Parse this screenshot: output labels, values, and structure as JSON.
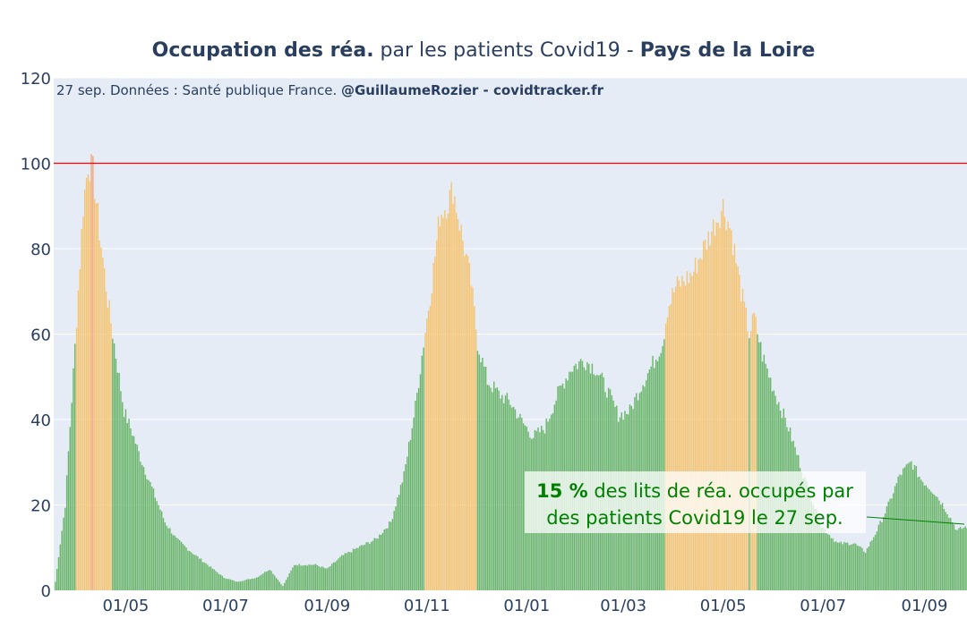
{
  "title": {
    "part1": "Occupation des réa.",
    "part2": " par les patients Covid19 - ",
    "part3": "Pays de la Loire"
  },
  "source": {
    "prefix": "27 sep. Données : Santé publique France. ",
    "credit": "@GuillaumeRozier - covidtracker.fr"
  },
  "annotation": {
    "value": "15  %",
    "line1_rest": " des lits de réa. occupés par",
    "line2": "des patients Covid19 le 27 sep."
  },
  "colors": {
    "plot_bg": "#e5ecf6",
    "grid": "#ffffff",
    "green": "#6ab56a",
    "orange": "#f6c471",
    "red_peak": "#f3a77a",
    "threshold": "#ff0000",
    "annotation": "#008000"
  },
  "chart_data": {
    "type": "bar",
    "title": "Occupation des réa. par les patients Covid19 - Pays de la Loire",
    "ylim": [
      0,
      120
    ],
    "yticks": [
      0,
      20,
      40,
      60,
      80,
      100,
      120
    ],
    "xlim": [
      "2020-03-18",
      "2021-09-27"
    ],
    "xticks": [
      {
        "date": "2020-05-01",
        "label": "01/05"
      },
      {
        "date": "2020-07-01",
        "label": "01/07"
      },
      {
        "date": "2020-09-01",
        "label": "01/09"
      },
      {
        "date": "2020-11-01",
        "label": "01/11"
      },
      {
        "date": "2021-01-01",
        "label": "01/01"
      },
      {
        "date": "2021-03-01",
        "label": "01/03"
      },
      {
        "date": "2021-05-01",
        "label": "01/05"
      },
      {
        "date": "2021-07-01",
        "label": "01/07"
      },
      {
        "date": "2021-09-01",
        "label": "01/09"
      }
    ],
    "threshold": 100,
    "color_rule": "green below 60, orange 60-100, red above 100",
    "series_keypoints": [
      [
        "2020-03-19",
        2
      ],
      [
        "2020-03-25",
        20
      ],
      [
        "2020-03-31",
        57
      ],
      [
        "2020-04-05",
        90
      ],
      [
        "2020-04-08",
        100
      ],
      [
        "2020-04-11",
        98
      ],
      [
        "2020-04-15",
        84
      ],
      [
        "2020-04-20",
        68
      ],
      [
        "2020-04-25",
        55
      ],
      [
        "2020-04-30",
        42
      ],
      [
        "2020-05-05",
        37
      ],
      [
        "2020-05-10",
        31
      ],
      [
        "2020-05-15",
        26
      ],
      [
        "2020-05-20",
        21
      ],
      [
        "2020-05-25",
        16
      ],
      [
        "2020-06-01",
        12
      ],
      [
        "2020-06-10",
        9
      ],
      [
        "2020-06-20",
        6
      ],
      [
        "2020-06-30",
        3
      ],
      [
        "2020-07-08",
        2
      ],
      [
        "2020-07-20",
        3
      ],
      [
        "2020-07-28",
        5
      ],
      [
        "2020-08-05",
        1
      ],
      [
        "2020-08-12",
        6
      ],
      [
        "2020-08-25",
        6
      ],
      [
        "2020-09-01",
        5
      ],
      [
        "2020-09-10",
        8
      ],
      [
        "2020-09-20",
        10
      ],
      [
        "2020-10-01",
        12
      ],
      [
        "2020-10-10",
        16
      ],
      [
        "2020-10-18",
        27
      ],
      [
        "2020-10-25",
        43
      ],
      [
        "2020-10-30",
        58
      ],
      [
        "2020-11-04",
        72
      ],
      [
        "2020-11-09",
        88
      ],
      [
        "2020-11-14",
        91
      ],
      [
        "2020-11-17",
        94
      ],
      [
        "2020-11-22",
        84
      ],
      [
        "2020-11-28",
        72
      ],
      [
        "2020-12-02",
        58
      ],
      [
        "2020-12-08",
        49
      ],
      [
        "2020-12-15",
        46
      ],
      [
        "2020-12-22",
        44
      ],
      [
        "2020-12-30",
        39
      ],
      [
        "2021-01-05",
        36
      ],
      [
        "2021-01-12",
        38
      ],
      [
        "2021-01-20",
        46
      ],
      [
        "2021-01-28",
        52
      ],
      [
        "2021-02-05",
        54
      ],
      [
        "2021-02-12",
        52
      ],
      [
        "2021-02-19",
        47
      ],
      [
        "2021-02-26",
        41
      ],
      [
        "2021-03-05",
        42
      ],
      [
        "2021-03-12",
        48
      ],
      [
        "2021-03-19",
        53
      ],
      [
        "2021-03-25",
        58
      ],
      [
        "2021-03-28",
        66
      ],
      [
        "2021-04-02",
        71
      ],
      [
        "2021-04-12",
        74
      ],
      [
        "2021-04-19",
        80
      ],
      [
        "2021-04-26",
        86
      ],
      [
        "2021-05-01",
        90
      ],
      [
        "2021-05-06",
        84
      ],
      [
        "2021-05-12",
        70
      ],
      [
        "2021-05-17",
        60
      ],
      [
        "2021-05-20",
        64
      ],
      [
        "2021-05-25",
        55
      ],
      [
        "2021-06-01",
        47
      ],
      [
        "2021-06-10",
        38
      ],
      [
        "2021-06-20",
        26
      ],
      [
        "2021-06-30",
        15
      ],
      [
        "2021-07-10",
        11
      ],
      [
        "2021-07-20",
        11
      ],
      [
        "2021-07-27",
        9
      ],
      [
        "2021-08-03",
        14
      ],
      [
        "2021-08-10",
        20
      ],
      [
        "2021-08-17",
        27
      ],
      [
        "2021-08-24",
        30
      ],
      [
        "2021-08-30",
        26
      ],
      [
        "2021-09-07",
        23
      ],
      [
        "2021-09-14",
        19
      ],
      [
        "2021-09-21",
        14
      ],
      [
        "2021-09-27",
        15
      ]
    ]
  }
}
